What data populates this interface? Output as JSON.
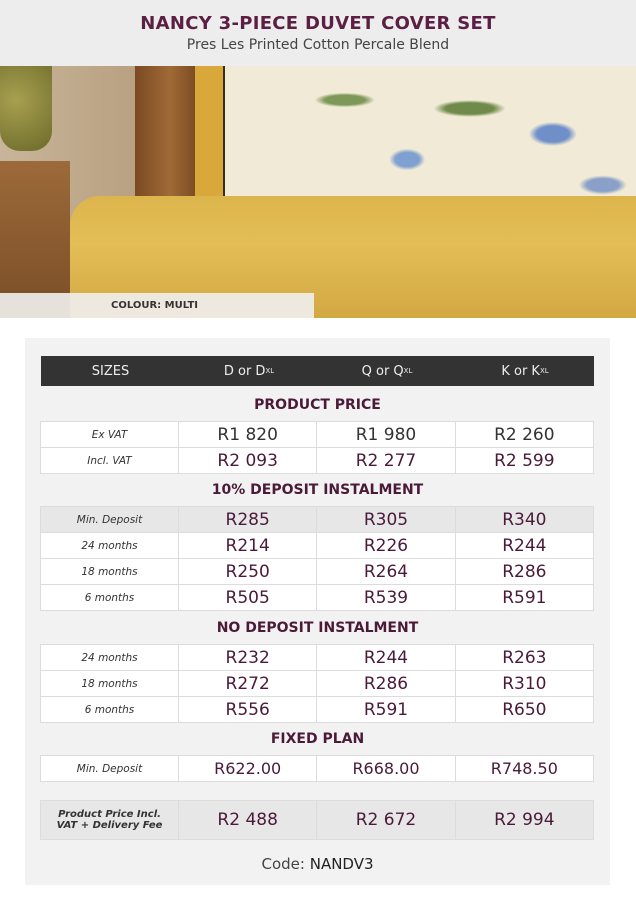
{
  "header": {
    "title": "NANCY 3-PIECE DUVET COVER SET",
    "subtitle": "Pres Les Printed Cotton Percale Blend"
  },
  "image": {
    "colour_label": "COLOUR: MULTI"
  },
  "table": {
    "columns": [
      {
        "label": "SIZES"
      },
      {
        "base": "D or D",
        "sup": "XL"
      },
      {
        "base": "Q or Q",
        "sup": "XL"
      },
      {
        "base": "K or K",
        "sup": "XL"
      }
    ],
    "product_price": {
      "title": "PRODUCT PRICE",
      "rows": [
        {
          "label": "Ex VAT",
          "values": [
            "R1 820",
            "R1 980",
            "R2 260"
          ]
        },
        {
          "label": "Incl. VAT",
          "values": [
            "R2 093",
            "R2 277",
            "R2 599"
          ]
        }
      ]
    },
    "deposit": {
      "title": "10% DEPOSIT INSTALMENT",
      "rows": [
        {
          "label": "Min. Deposit",
          "values": [
            "R285",
            "R305",
            "R340"
          ]
        },
        {
          "label": "24 months",
          "values": [
            "R214",
            "R226",
            "R244"
          ]
        },
        {
          "label": "18 months",
          "values": [
            "R250",
            "R264",
            "R286"
          ]
        },
        {
          "label": "6 months",
          "values": [
            "R505",
            "R539",
            "R591"
          ]
        }
      ]
    },
    "no_deposit": {
      "title": "NO DEPOSIT INSTALMENT",
      "rows": [
        {
          "label": "24 months",
          "values": [
            "R232",
            "R244",
            "R263"
          ]
        },
        {
          "label": "18 months",
          "values": [
            "R272",
            "R286",
            "R310"
          ]
        },
        {
          "label": "6 months",
          "values": [
            "R556",
            "R591",
            "R650"
          ]
        }
      ]
    },
    "fixed": {
      "title": "FIXED PLAN",
      "rows": [
        {
          "label": "Min. Deposit",
          "values": [
            "R622.00",
            "R668.00",
            "R748.50"
          ]
        }
      ]
    },
    "total": {
      "label": "Product Price Incl. VAT + Delivery Fee",
      "values": [
        "R2 488",
        "R2 672",
        "R2 994"
      ]
    }
  },
  "code": {
    "label": "Code:",
    "value": "NANDV3"
  },
  "colors": {
    "accent": "#4a1a38",
    "header_bg": "#333333"
  }
}
